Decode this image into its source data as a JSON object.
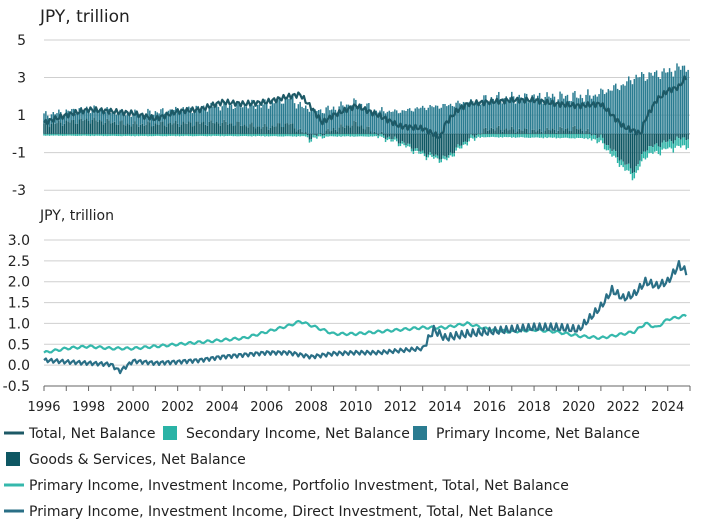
{
  "colors": {
    "total": "#1d5966",
    "secondary": "#2ab3a6",
    "primary": "#2a7c91",
    "goods": "#0e5763",
    "portfolio": "#35b8ac",
    "direct": "#2a6f86",
    "grid": "#cfcfcf",
    "text": "#222222"
  },
  "chart_data": [
    {
      "type": "bar",
      "ylabel": "JPY, trillion",
      "ylim": [
        -3.2,
        5
      ],
      "yticks": [
        5,
        3,
        1,
        -1,
        -3
      ],
      "xlim": [
        1996,
        2025
      ],
      "grid": true,
      "series": [
        {
          "name": "Goods & Services, Net Balance",
          "kind": "bar",
          "color_key": "goods",
          "x": [
            1996,
            1998,
            2000,
            2002,
            2004,
            2006,
            2007,
            2008,
            2009,
            2010,
            2011,
            2012,
            2013,
            2014,
            2015,
            2016,
            2018,
            2020,
            2021,
            2022,
            2022.5,
            2023,
            2024,
            2024.8
          ],
          "y": [
            0.5,
            0.75,
            0.5,
            0.55,
            0.6,
            0.35,
            0.55,
            -0.2,
            0.25,
            0.55,
            0.0,
            -0.4,
            -1.0,
            -1.3,
            -0.3,
            0.3,
            0.15,
            0.3,
            -0.2,
            -1.5,
            -2.0,
            -0.8,
            -0.4,
            -0.2
          ]
        },
        {
          "name": "Primary Income, Net Balance",
          "kind": "bar",
          "color_key": "primary",
          "x": [
            1996,
            1998,
            2000,
            2002,
            2004,
            2006,
            2007,
            2008,
            2009,
            2010,
            2011,
            2012,
            2013,
            2014,
            2015,
            2016,
            2018,
            2020,
            2021,
            2022,
            2022.5,
            2023,
            2024,
            2024.8
          ],
          "y": [
            0.5,
            0.6,
            0.55,
            0.7,
            0.9,
            1.2,
            1.4,
            1.3,
            1.1,
            1.1,
            1.2,
            1.2,
            1.4,
            1.5,
            1.7,
            1.6,
            1.8,
            1.7,
            2.2,
            2.6,
            3.0,
            3.1,
            3.3,
            3.6
          ]
        },
        {
          "name": "Secondary Income, Net Balance",
          "kind": "bar",
          "color_key": "secondary",
          "x": [
            1996,
            2000,
            2004,
            2008,
            2012,
            2016,
            2020,
            2024.8
          ],
          "y": [
            -0.08,
            -0.1,
            -0.1,
            -0.12,
            -0.12,
            -0.15,
            -0.2,
            -0.4
          ]
        },
        {
          "name": "Total, Net Balance",
          "kind": "line",
          "color_key": "total",
          "x": [
            1996,
            1997,
            1998,
            1999,
            2000,
            2001,
            2002,
            2003,
            2004,
            2005,
            2006,
            2007,
            2007.5,
            2008,
            2008.5,
            2009,
            2010,
            2011,
            2012,
            2013,
            2013.8,
            2014,
            2014.5,
            2015,
            2016,
            2017,
            2018,
            2019,
            2020,
            2021,
            2022,
            2022.8,
            2023,
            2023.5,
            2024,
            2024.5,
            2024.8
          ],
          "y": [
            0.6,
            1.0,
            1.3,
            1.2,
            1.1,
            0.8,
            1.2,
            1.3,
            1.7,
            1.6,
            1.7,
            2.0,
            2.1,
            1.4,
            0.6,
            1.0,
            1.5,
            1.0,
            0.4,
            0.3,
            -0.2,
            0.5,
            1.2,
            1.6,
            1.7,
            1.8,
            1.8,
            1.6,
            1.5,
            1.6,
            0.4,
            0.0,
            0.8,
            1.8,
            2.3,
            2.5,
            3.0
          ]
        }
      ]
    },
    {
      "type": "line",
      "ylabel": "JPY, trillion",
      "ylim": [
        -0.5,
        3.0
      ],
      "yticks": [
        3.0,
        2.5,
        2.0,
        1.5,
        1.0,
        0.5,
        0.0,
        -0.5
      ],
      "xlim": [
        1996,
        2025
      ],
      "xticks": [
        1996,
        1998,
        2000,
        2002,
        2004,
        2006,
        2008,
        2010,
        2012,
        2014,
        2016,
        2018,
        2020,
        2022,
        2024
      ],
      "grid": true,
      "series": [
        {
          "name": "Primary Income, Investment Income, Portfolio Investment, Total, Net Balance",
          "color_key": "portfolio",
          "x": [
            1996,
            1997,
            1998,
            1999,
            2000,
            2001,
            2002,
            2003,
            2004,
            2005,
            2006,
            2007,
            2007.5,
            2008,
            2009,
            2010,
            2011,
            2012,
            2013,
            2014,
            2015,
            2016,
            2017,
            2018,
            2019,
            2020,
            2021,
            2022,
            2022.5,
            2023,
            2023.5,
            2024,
            2024.5,
            2024.9
          ],
          "y": [
            0.3,
            0.4,
            0.45,
            0.4,
            0.4,
            0.45,
            0.5,
            0.55,
            0.6,
            0.65,
            0.8,
            0.95,
            1.05,
            0.95,
            0.75,
            0.75,
            0.8,
            0.85,
            0.9,
            0.9,
            1.0,
            0.85,
            0.8,
            0.85,
            0.8,
            0.7,
            0.65,
            0.75,
            0.8,
            1.0,
            0.9,
            1.1,
            1.15,
            1.2
          ]
        },
        {
          "name": "Primary Income, Investment Income, Direct Investment, Total, Net Balance",
          "color_key": "direct",
          "x": [
            1996,
            1997,
            1998,
            1999,
            1999.4,
            2000,
            2001,
            2002,
            2003,
            2004,
            2005,
            2006,
            2007,
            2008,
            2009,
            2010,
            2011,
            2012,
            2013,
            2013.5,
            2014,
            2015,
            2016,
            2017,
            2018,
            2019,
            2020,
            2021,
            2021.5,
            2022,
            2022.5,
            2023,
            2023.5,
            2024,
            2024.5,
            2024.9
          ],
          "y": [
            0.12,
            0.08,
            0.05,
            0.02,
            -0.15,
            0.1,
            0.05,
            0.08,
            0.12,
            0.2,
            0.25,
            0.3,
            0.3,
            0.2,
            0.28,
            0.3,
            0.3,
            0.35,
            0.4,
            0.85,
            0.65,
            0.75,
            0.8,
            0.85,
            0.9,
            0.9,
            0.85,
            1.4,
            1.8,
            1.6,
            1.7,
            2.0,
            1.9,
            2.0,
            2.4,
            2.2
          ]
        }
      ]
    }
  ],
  "legend": {
    "row1": [
      {
        "text": "Total, Net Balance",
        "swatch": "line",
        "color_key": "total"
      },
      {
        "text": "Secondary Income, Net Balance",
        "swatch": "square",
        "color_key": "secondary"
      },
      {
        "text": "Primary Income, Net Balance",
        "swatch": "square",
        "color_key": "primary"
      }
    ],
    "row2": [
      {
        "text": "Goods & Services, Net Balance",
        "swatch": "square",
        "color_key": "goods"
      }
    ],
    "row3": [
      {
        "text": "Primary Income, Investment Income, Portfolio Investment, Total, Net Balance",
        "swatch": "line",
        "color_key": "portfolio"
      }
    ],
    "row4": [
      {
        "text": "Primary Income, Investment Income, Direct Investment, Total, Net Balance",
        "swatch": "line",
        "color_key": "direct"
      }
    ]
  }
}
